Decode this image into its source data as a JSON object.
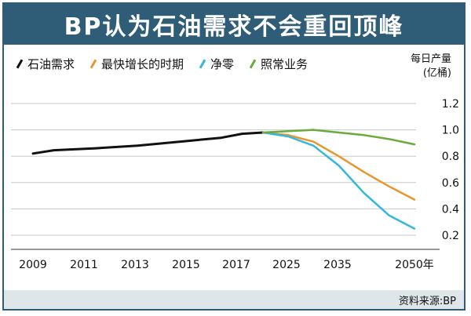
{
  "title": "BP认为石油需求不会重回顶峰",
  "legend": [
    {
      "label": "石油需求",
      "color": "#111111"
    },
    {
      "label": "最快增长的时期",
      "color": "#e8962e"
    },
    {
      "label": "净零",
      "color": "#35b6dc"
    },
    {
      "label": "照常业务",
      "color": "#6aab3b"
    }
  ],
  "unit_line1": "每日产量",
  "unit_line2": "(亿桶)",
  "source": "资料来源:BP",
  "chart_data": {
    "type": "line",
    "title": "BP认为石油需求不会重回顶峰",
    "ylabel": "每日产量(亿桶)",
    "ylim": [
      0.2,
      1.2
    ],
    "yticks": [
      "1.2",
      "1.0",
      "0.8",
      "0.6",
      "0.4",
      "0.2"
    ],
    "xticks": [
      "2009",
      "2011",
      "2013",
      "2015",
      "2017",
      "2025",
      "2035",
      "2050年"
    ],
    "grid": true,
    "series": [
      {
        "name": "石油需求",
        "color": "#111111",
        "points": [
          [
            2009,
            0.82
          ],
          [
            2010,
            0.845
          ],
          [
            2012,
            0.86
          ],
          [
            2014,
            0.88
          ],
          [
            2016,
            0.91
          ],
          [
            2018,
            0.94
          ],
          [
            2019,
            0.97
          ],
          [
            2020,
            0.98
          ]
        ]
      },
      {
        "name": "最快增长的时期",
        "color": "#e8962e",
        "points": [
          [
            2020,
            0.98
          ],
          [
            2025,
            0.96
          ],
          [
            2030,
            0.91
          ],
          [
            2035,
            0.8
          ],
          [
            2040,
            0.68
          ],
          [
            2045,
            0.57
          ],
          [
            2050,
            0.47
          ]
        ]
      },
      {
        "name": "净零",
        "color": "#35b6dc",
        "points": [
          [
            2020,
            0.98
          ],
          [
            2025,
            0.95
          ],
          [
            2030,
            0.88
          ],
          [
            2035,
            0.73
          ],
          [
            2040,
            0.52
          ],
          [
            2045,
            0.35
          ],
          [
            2050,
            0.25
          ]
        ]
      },
      {
        "name": "照常业务",
        "color": "#6aab3b",
        "points": [
          [
            2020,
            0.98
          ],
          [
            2025,
            0.99
          ],
          [
            2030,
            1.0
          ],
          [
            2035,
            0.98
          ],
          [
            2040,
            0.96
          ],
          [
            2045,
            0.93
          ],
          [
            2050,
            0.89
          ]
        ]
      }
    ]
  }
}
